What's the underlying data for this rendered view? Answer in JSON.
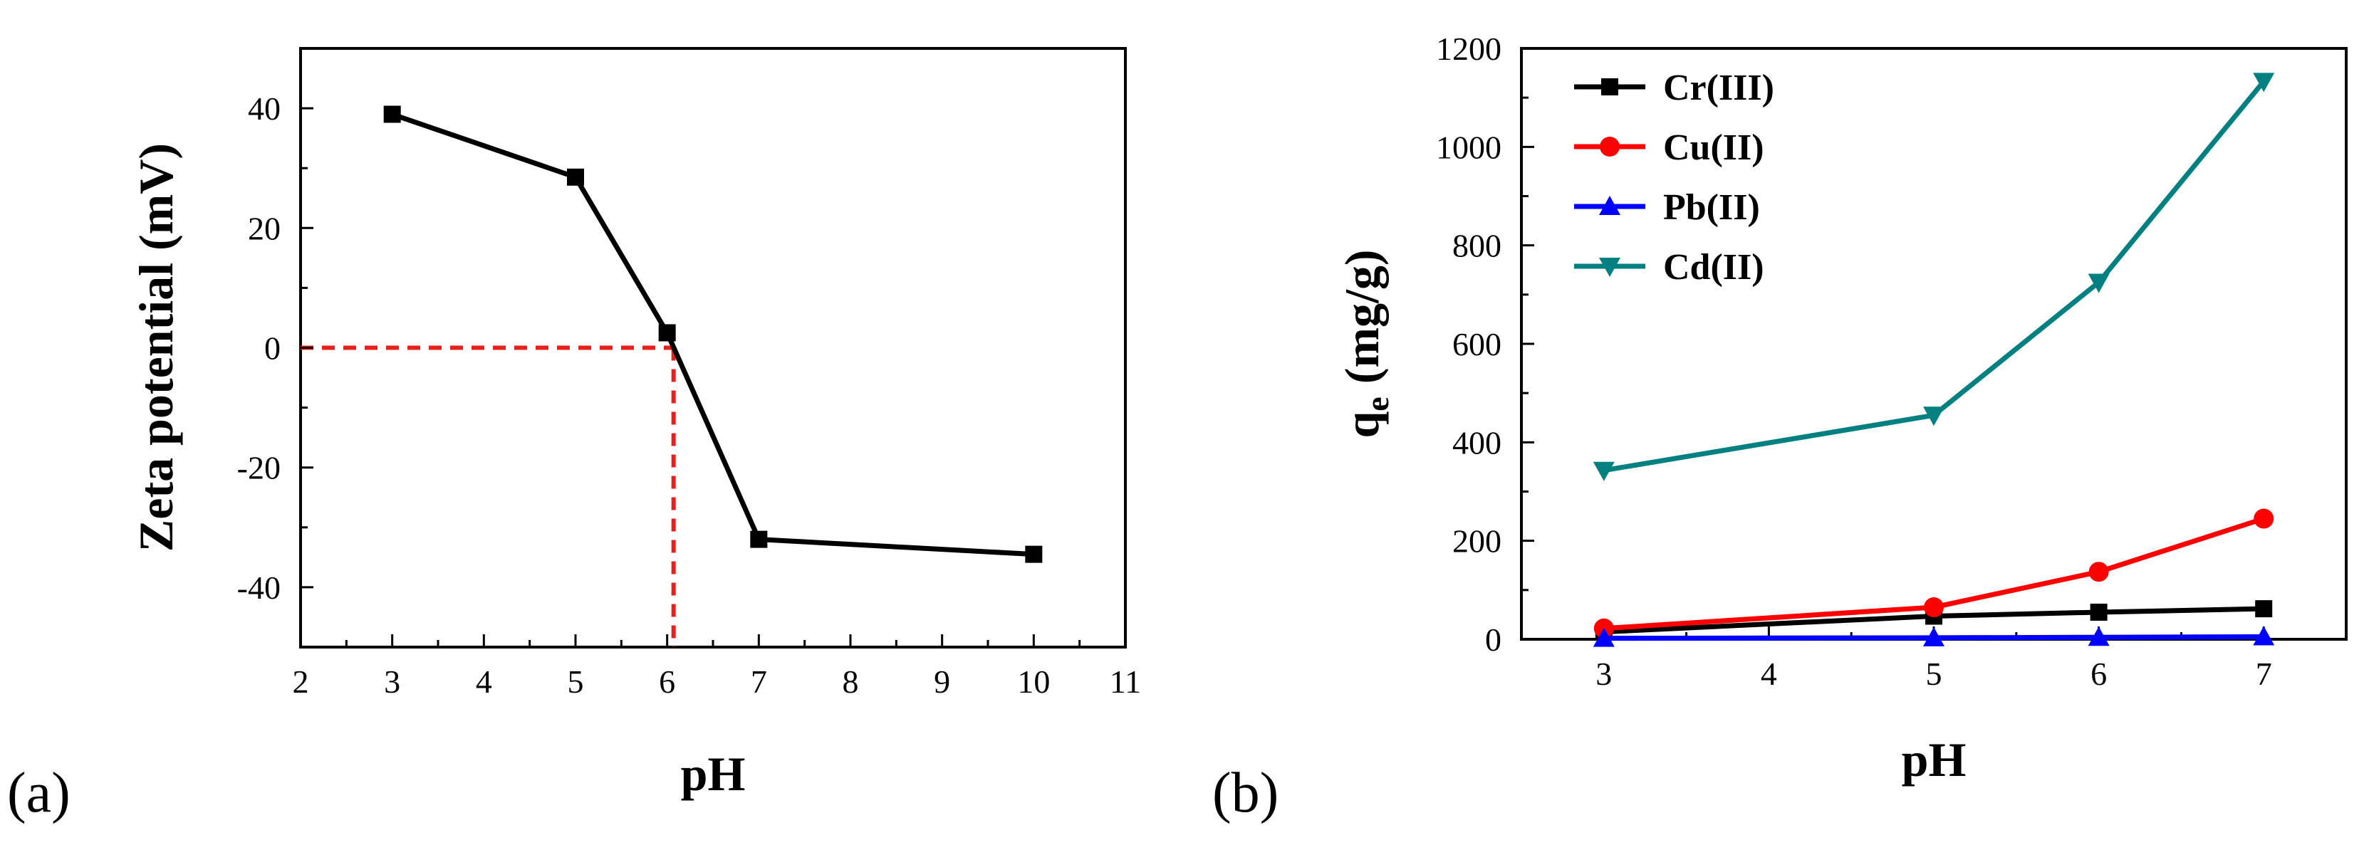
{
  "chart_data": [
    {
      "type": "line",
      "panel_label": "(a)",
      "title": "",
      "xlabel": "pH",
      "ylabel": "Zeta potential (mV)",
      "xlim": [
        2,
        11
      ],
      "ylim": [
        -50,
        50
      ],
      "xticks": [
        2,
        3,
        4,
        5,
        6,
        7,
        8,
        9,
        10,
        11
      ],
      "yticks": [
        -40,
        -20,
        0,
        20,
        40
      ],
      "x": [
        3,
        5,
        6,
        7,
        10
      ],
      "series": [
        {
          "name": "Zeta potential",
          "color": "#000000",
          "marker": "square",
          "values": [
            39,
            28.5,
            2.5,
            -32,
            -34.5
          ]
        }
      ],
      "reference_lines": {
        "color": "#e8201c",
        "isoelectric_ph": 6.07,
        "zero_level": 0
      },
      "grid": false,
      "legend": "none"
    },
    {
      "type": "line",
      "panel_label": "(b)",
      "title": "",
      "xlabel": "pH",
      "ylabel": "q",
      "ylabel_subscript": "e",
      "ylabel_unit": "(mg/g)",
      "xlim": [
        2.5,
        7.5
      ],
      "ylim": [
        0,
        1200
      ],
      "xticks": [
        3,
        4,
        5,
        6,
        7
      ],
      "yticks": [
        0,
        200,
        400,
        600,
        800,
        1000,
        1200
      ],
      "x": [
        3,
        5,
        6,
        7
      ],
      "series": [
        {
          "name": "Cr(III)",
          "color": "#000000",
          "marker": "square",
          "values": [
            15,
            47,
            55,
            62
          ]
        },
        {
          "name": "Cu(II)",
          "color": "#ff0000",
          "marker": "circle",
          "values": [
            22,
            65,
            137,
            245
          ]
        },
        {
          "name": "Pb(II)",
          "color": "#0000ff",
          "marker": "triangle-up",
          "values": [
            2,
            3,
            4,
            5
          ]
        },
        {
          "name": "Cd(II)",
          "color": "#008080",
          "marker": "triangle-down",
          "values": [
            343,
            455,
            725,
            1133
          ]
        }
      ],
      "grid": false,
      "legend": "top-left"
    }
  ]
}
